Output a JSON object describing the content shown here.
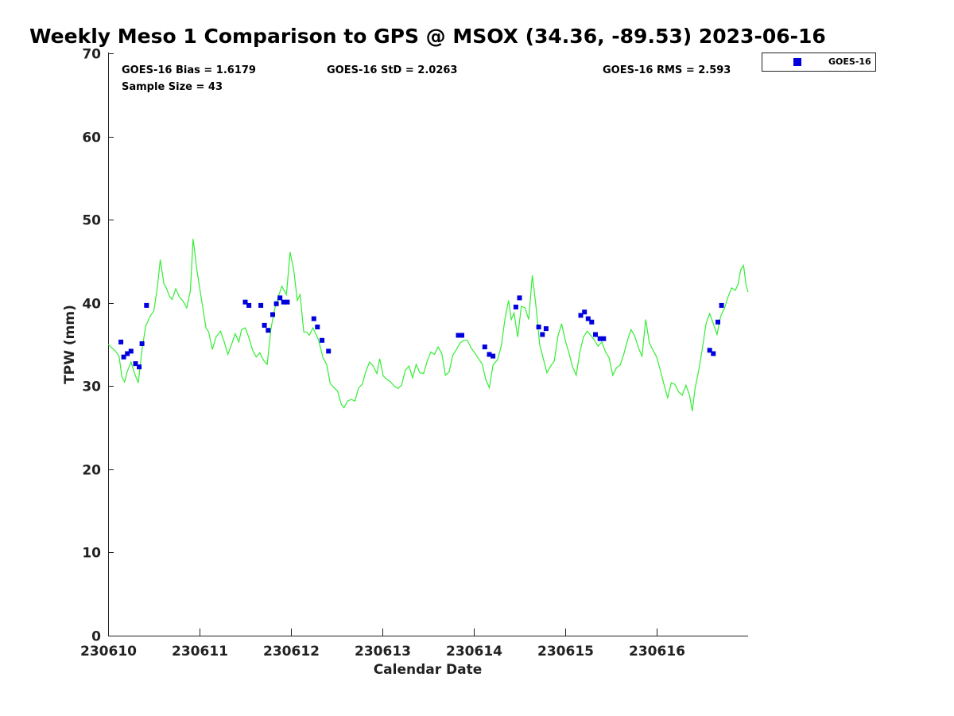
{
  "chart_data": {
    "type": "scatter",
    "title": "Weekly Meso 1 Comparison to GPS @ MSOX (34.36, -89.53) 2023-06-16",
    "xlabel": "Calendar Date",
    "ylabel": "TPW (mm)",
    "xlim": [
      0,
      7
    ],
    "ylim": [
      0,
      70
    ],
    "x_tick_positions": [
      0,
      1,
      2,
      3,
      4,
      5,
      6
    ],
    "x_tick_labels": [
      "230610",
      "230611",
      "230612",
      "230613",
      "230614",
      "230615",
      "230616"
    ],
    "y_ticks": [
      0,
      10,
      20,
      30,
      40,
      50,
      60,
      70
    ],
    "stats": {
      "bias": "GOES-16 Bias = 1.6179",
      "std": "GOES-16 StD = 2.0263",
      "rms": "GOES-16 RMS = 2.593",
      "sample": "Sample Size = 43"
    },
    "legend": {
      "position": "top-right outside",
      "entries": [
        {
          "label": "GOES-16",
          "color": "#0000dd",
          "marker": "square"
        }
      ]
    },
    "grid": false,
    "series": [
      {
        "name": "GOES-16",
        "kind": "scatter",
        "color": "#0000dd",
        "points": [
          [
            0.14,
            35.3
          ],
          [
            0.17,
            33.5
          ],
          [
            0.21,
            33.9
          ],
          [
            0.25,
            34.2
          ],
          [
            0.3,
            32.7
          ],
          [
            0.34,
            32.3
          ],
          [
            0.37,
            35.1
          ],
          [
            0.42,
            39.7
          ],
          [
            1.5,
            40.1
          ],
          [
            1.54,
            39.7
          ],
          [
            1.67,
            39.7
          ],
          [
            1.71,
            37.3
          ],
          [
            1.75,
            36.7
          ],
          [
            1.8,
            38.6
          ],
          [
            1.84,
            39.9
          ],
          [
            1.88,
            40.6
          ],
          [
            1.92,
            40.1
          ],
          [
            1.96,
            40.1
          ],
          [
            2.25,
            38.1
          ],
          [
            2.29,
            37.1
          ],
          [
            2.34,
            35.5
          ],
          [
            2.41,
            34.2
          ],
          [
            3.83,
            36.1
          ],
          [
            3.87,
            36.1
          ],
          [
            4.12,
            34.7
          ],
          [
            4.17,
            33.8
          ],
          [
            4.21,
            33.6
          ],
          [
            4.46,
            39.5
          ],
          [
            4.5,
            40.6
          ],
          [
            4.71,
            37.1
          ],
          [
            4.75,
            36.2
          ],
          [
            4.79,
            36.9
          ],
          [
            5.17,
            38.5
          ],
          [
            5.21,
            38.9
          ],
          [
            5.25,
            38.1
          ],
          [
            5.29,
            37.7
          ],
          [
            5.33,
            36.2
          ],
          [
            5.38,
            35.7
          ],
          [
            5.42,
            35.7
          ],
          [
            6.58,
            34.3
          ],
          [
            6.62,
            33.9
          ],
          [
            6.67,
            37.7
          ],
          [
            6.71,
            39.7
          ]
        ]
      },
      {
        "name": "GPS",
        "kind": "line",
        "color": "#33ee33",
        "points": [
          [
            0.0,
            35.0
          ],
          [
            0.04,
            34.6
          ],
          [
            0.08,
            34.2
          ],
          [
            0.12,
            33.6
          ],
          [
            0.15,
            31.1
          ],
          [
            0.18,
            30.5
          ],
          [
            0.21,
            31.8
          ],
          [
            0.25,
            32.9
          ],
          [
            0.29,
            31.5
          ],
          [
            0.33,
            30.4
          ],
          [
            0.37,
            34.3
          ],
          [
            0.41,
            37.2
          ],
          [
            0.46,
            38.4
          ],
          [
            0.5,
            39.0
          ],
          [
            0.54,
            42.0
          ],
          [
            0.57,
            45.2
          ],
          [
            0.61,
            42.3
          ],
          [
            0.64,
            41.7
          ],
          [
            0.67,
            40.8
          ],
          [
            0.7,
            40.4
          ],
          [
            0.74,
            41.7
          ],
          [
            0.78,
            40.7
          ],
          [
            0.82,
            40.2
          ],
          [
            0.86,
            39.4
          ],
          [
            0.9,
            41.5
          ],
          [
            0.93,
            47.7
          ],
          [
            0.97,
            44.0
          ],
          [
            1.02,
            40.5
          ],
          [
            1.07,
            37.0
          ],
          [
            1.1,
            36.5
          ],
          [
            1.14,
            34.4
          ],
          [
            1.18,
            35.9
          ],
          [
            1.23,
            36.6
          ],
          [
            1.27,
            35.3
          ],
          [
            1.31,
            33.8
          ],
          [
            1.35,
            35.0
          ],
          [
            1.39,
            36.3
          ],
          [
            1.43,
            35.3
          ],
          [
            1.46,
            36.8
          ],
          [
            1.5,
            37.0
          ],
          [
            1.54,
            35.8
          ],
          [
            1.58,
            34.3
          ],
          [
            1.62,
            33.5
          ],
          [
            1.66,
            34.0
          ],
          [
            1.7,
            33.1
          ],
          [
            1.74,
            32.6
          ],
          [
            1.78,
            36.8
          ],
          [
            1.82,
            39.2
          ],
          [
            1.86,
            40.7
          ],
          [
            1.9,
            42.0
          ],
          [
            1.95,
            41.0
          ],
          [
            1.99,
            46.1
          ],
          [
            2.03,
            44.0
          ],
          [
            2.07,
            40.3
          ],
          [
            2.1,
            41.0
          ],
          [
            2.14,
            36.5
          ],
          [
            2.17,
            36.5
          ],
          [
            2.2,
            36.1
          ],
          [
            2.24,
            37.0
          ],
          [
            2.27,
            36.3
          ],
          [
            2.3,
            35.6
          ],
          [
            2.35,
            33.4
          ],
          [
            2.39,
            32.6
          ],
          [
            2.43,
            30.3
          ],
          [
            2.47,
            29.8
          ],
          [
            2.51,
            29.4
          ],
          [
            2.55,
            27.8
          ],
          [
            2.58,
            27.4
          ],
          [
            2.62,
            28.2
          ],
          [
            2.66,
            28.4
          ],
          [
            2.7,
            28.2
          ],
          [
            2.74,
            29.8
          ],
          [
            2.78,
            30.2
          ],
          [
            2.82,
            31.8
          ],
          [
            2.86,
            32.9
          ],
          [
            2.9,
            32.4
          ],
          [
            2.94,
            31.5
          ],
          [
            2.97,
            33.3
          ],
          [
            3.01,
            31.2
          ],
          [
            3.05,
            30.8
          ],
          [
            3.09,
            30.5
          ],
          [
            3.13,
            30.0
          ],
          [
            3.17,
            29.7
          ],
          [
            3.21,
            30.1
          ],
          [
            3.25,
            31.9
          ],
          [
            3.29,
            32.4
          ],
          [
            3.33,
            31.0
          ],
          [
            3.37,
            32.6
          ],
          [
            3.41,
            31.6
          ],
          [
            3.45,
            31.5
          ],
          [
            3.49,
            33.0
          ],
          [
            3.53,
            34.1
          ],
          [
            3.57,
            33.8
          ],
          [
            3.61,
            34.7
          ],
          [
            3.65,
            33.9
          ],
          [
            3.69,
            31.3
          ],
          [
            3.73,
            31.7
          ],
          [
            3.77,
            33.7
          ],
          [
            3.81,
            34.4
          ],
          [
            3.85,
            35.2
          ],
          [
            3.89,
            35.5
          ],
          [
            3.93,
            35.5
          ],
          [
            3.97,
            34.6
          ],
          [
            4.01,
            34.0
          ],
          [
            4.05,
            33.3
          ],
          [
            4.09,
            32.7
          ],
          [
            4.13,
            30.8
          ],
          [
            4.17,
            29.8
          ],
          [
            4.21,
            32.5
          ],
          [
            4.26,
            33.2
          ],
          [
            4.3,
            34.8
          ],
          [
            4.34,
            38.0
          ],
          [
            4.38,
            40.3
          ],
          [
            4.41,
            38.0
          ],
          [
            4.44,
            38.8
          ],
          [
            4.48,
            35.9
          ],
          [
            4.52,
            39.6
          ],
          [
            4.56,
            39.4
          ],
          [
            4.6,
            38.0
          ],
          [
            4.64,
            43.3
          ],
          [
            4.68,
            39.6
          ],
          [
            4.72,
            35.0
          ],
          [
            4.76,
            33.3
          ],
          [
            4.8,
            31.6
          ],
          [
            4.84,
            32.4
          ],
          [
            4.88,
            33.0
          ],
          [
            4.92,
            36.0
          ],
          [
            4.96,
            37.5
          ],
          [
            5.0,
            35.5
          ],
          [
            5.04,
            34.0
          ],
          [
            5.08,
            32.3
          ],
          [
            5.12,
            31.3
          ],
          [
            5.16,
            34.1
          ],
          [
            5.2,
            35.9
          ],
          [
            5.24,
            36.6
          ],
          [
            5.28,
            36.1
          ],
          [
            5.32,
            35.5
          ],
          [
            5.36,
            34.8
          ],
          [
            5.4,
            35.3
          ],
          [
            5.44,
            34.1
          ],
          [
            5.48,
            33.4
          ],
          [
            5.52,
            31.3
          ],
          [
            5.56,
            32.2
          ],
          [
            5.6,
            32.5
          ],
          [
            5.64,
            33.8
          ],
          [
            5.68,
            35.5
          ],
          [
            5.72,
            36.8
          ],
          [
            5.76,
            36.0
          ],
          [
            5.8,
            34.6
          ],
          [
            5.84,
            33.6
          ],
          [
            5.88,
            38.0
          ],
          [
            5.92,
            35.2
          ],
          [
            5.96,
            34.3
          ],
          [
            6.0,
            33.5
          ],
          [
            6.04,
            31.9
          ],
          [
            6.08,
            30.2
          ],
          [
            6.12,
            28.6
          ],
          [
            6.16,
            30.4
          ],
          [
            6.2,
            30.2
          ],
          [
            6.24,
            29.3
          ],
          [
            6.28,
            28.9
          ],
          [
            6.32,
            30.1
          ],
          [
            6.36,
            28.9
          ],
          [
            6.39,
            27.0
          ],
          [
            6.42,
            29.7
          ],
          [
            6.46,
            31.9
          ],
          [
            6.5,
            34.5
          ],
          [
            6.54,
            37.5
          ],
          [
            6.58,
            38.7
          ],
          [
            6.62,
            37.5
          ],
          [
            6.66,
            36.2
          ],
          [
            6.7,
            38.4
          ],
          [
            6.74,
            39.3
          ],
          [
            6.78,
            40.7
          ],
          [
            6.82,
            41.8
          ],
          [
            6.86,
            41.5
          ],
          [
            6.89,
            42.2
          ],
          [
            6.92,
            44.0
          ],
          [
            6.95,
            44.5
          ],
          [
            6.98,
            42.0
          ],
          [
            7.0,
            41.3
          ]
        ]
      }
    ]
  }
}
